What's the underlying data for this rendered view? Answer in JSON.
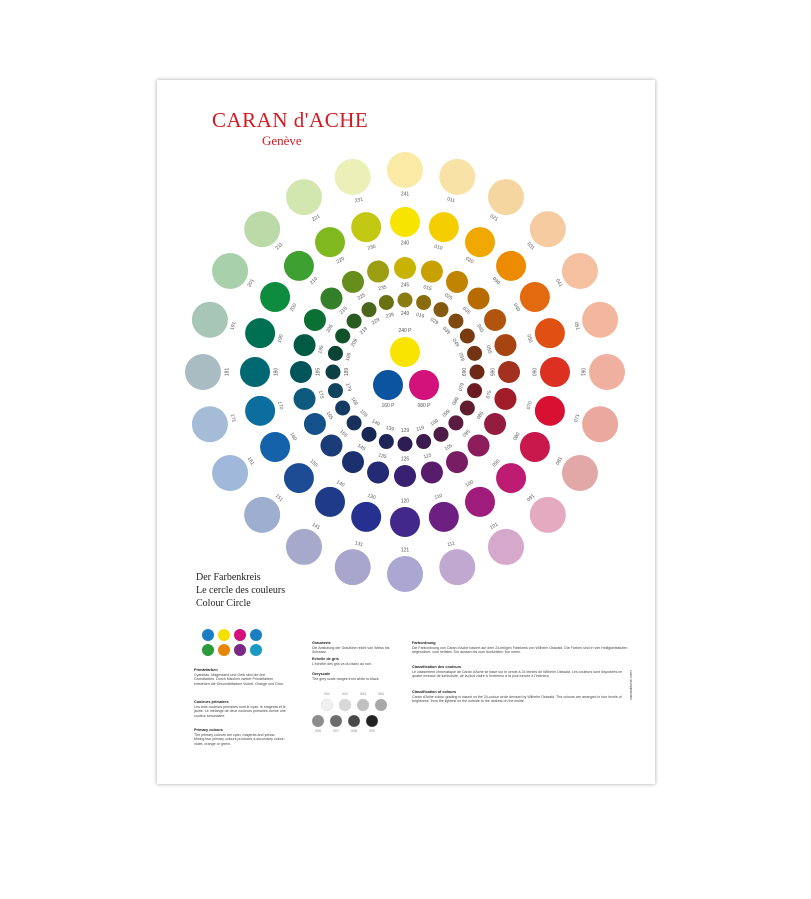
{
  "brand": {
    "name": "CARAN d'ACHE",
    "city": "Genève"
  },
  "wheel": {
    "rings": [
      {
        "labels": [
          "241",
          "011",
          "021",
          "031",
          "041",
          "051",
          "061",
          "071",
          "081",
          "091",
          "101",
          "111",
          "121",
          "131",
          "141",
          "151",
          "161",
          "171",
          "181",
          "191",
          "201",
          "211",
          "221",
          "231"
        ],
        "colors": [
          "#fbe9a6",
          "#f8e2a6",
          "#f6d6a0",
          "#f6cba0",
          "#f4c0a0",
          "#f2b79c",
          "#f0b0a0",
          "#eba89e",
          "#e2a8a8",
          "#e4aac0",
          "#d6a8cc",
          "#c0a8d0",
          "#aca6d2",
          "#a8a6cc",
          "#a6a8cc",
          "#9eaed0",
          "#a0b8da",
          "#a6bcd6",
          "#a8bcc2",
          "#a8c6b6",
          "#a8d0aa",
          "#bcdaa8",
          "#d2e6b0",
          "#eaf0b8"
        ]
      },
      {
        "labels": [
          "240",
          "010",
          "020",
          "030",
          "040",
          "050",
          "060",
          "070",
          "080",
          "090",
          "100",
          "110",
          "120",
          "130",
          "140",
          "150",
          "160",
          "170",
          "180",
          "190",
          "200",
          "210",
          "220",
          "230"
        ],
        "colors": [
          "#f7e400",
          "#f5ce00",
          "#f0a800",
          "#ec8a00",
          "#e46a10",
          "#e05012",
          "#dc3020",
          "#d81032",
          "#c8184c",
          "#be1c72",
          "#a01c7a",
          "#6e2082",
          "#42288a",
          "#263090",
          "#1e3a88",
          "#1e4c94",
          "#1662aa",
          "#0c6e9e",
          "#006870",
          "#007052",
          "#0e8c3e",
          "#3ea030",
          "#80b820",
          "#c2c812"
        ]
      },
      {
        "labels": [
          "245",
          "015",
          "025",
          "035",
          "045",
          "055",
          "065",
          "075",
          "085",
          "095",
          "105",
          "115",
          "125",
          "135",
          "145",
          "155",
          "165",
          "175",
          "185",
          "195",
          "205",
          "215",
          "225",
          "235"
        ],
        "colors": [
          "#c8b400",
          "#c8a000",
          "#c08400",
          "#b86c00",
          "#b05410",
          "#a84410",
          "#a43020",
          "#a01c28",
          "#941c40",
          "#8c1c5c",
          "#781c64",
          "#581c6c",
          "#3a2070",
          "#242a74",
          "#1c3070",
          "#1a3c78",
          "#14508a",
          "#0e5a7e",
          "#00545a",
          "#005a44",
          "#0a7034",
          "#34802a",
          "#668e1a",
          "#9a9e10"
        ]
      },
      {
        "labels": [
          "249",
          "019",
          "029",
          "039",
          "049",
          "059",
          "069",
          "079",
          "089",
          "099",
          "109",
          "119",
          "129",
          "139",
          "149",
          "159",
          "169",
          "179",
          "189",
          "199",
          "209",
          "219",
          "229",
          "239"
        ],
        "colors": [
          "#8a7c10",
          "#8a6c10",
          "#845a10",
          "#7e4a10",
          "#783c10",
          "#723414",
          "#6e2818",
          "#6a1c20",
          "#621c30",
          "#5c1c42",
          "#4e1c48",
          "#3c1c4e",
          "#2c1e52",
          "#1e2456",
          "#182854",
          "#18305a",
          "#143c62",
          "#10445c",
          "#0c4044",
          "#0c4434",
          "#10522a",
          "#2a5c22",
          "#4a661a",
          "#6a7014"
        ]
      }
    ],
    "center": {
      "labels": [
        "240 P",
        "160 P",
        "080 P"
      ],
      "colors": [
        "#f9e400",
        "#0d54a0",
        "#d2117a"
      ]
    }
  },
  "titles": [
    "Der Farbenkreis",
    "Le cercle des couleurs",
    "Colour Circle"
  ],
  "swatches": {
    "primary": [
      "#1a7ec2",
      "#f5e000",
      "#d2117a",
      "#1a7ec2"
    ],
    "secondary": [
      "#2a9a3a",
      "#e8860c",
      "#7a2a86",
      "#1a9ac2"
    ]
  },
  "sections": [
    {
      "heading": "Primärfarben",
      "text": "Cyanblau, Magentarot und Gelb sind die drei Grundfarben. Durch Mischen zweier Primärfarben entstehen die Sekundärfarben Violett, Orange und Grün."
    },
    {
      "heading": "Couleurs primaires",
      "text": "Les trois couleurs primaires sont le cyan, le magenta et le jaune. Le mélange de deux couleurs primaires donne une couleur secondaire."
    },
    {
      "heading": "Primary colours",
      "text": "The primary colours are cyan, magenta and yellow. Mixing two primary colours produces a secondary colour: violet, orange or green."
    },
    {
      "heading": "Grauwerte",
      "text": "Die Abstufung der Grautöne reicht von Weiss bis Schwarz."
    },
    {
      "heading": "Echelle de gris",
      "text": "L'échelle des gris va du blanc au noir."
    },
    {
      "heading": "Greyscale",
      "text": "The grey scale ranges from white to black."
    },
    {
      "heading": "Farbordnung",
      "text": "Die Farbordnung von Caran d'Ache basiert auf dem 24-teiligen Farbkreis von Wilhelm Ostwald. Die Farben sind in vier Helligkeitsstufen angeordnet, vom hellsten Ton aussen bis zum dunkelsten Ton innen."
    },
    {
      "heading": "Classification des couleurs",
      "text": "Le classement chromatique de Caran d'Ache se base sur le cercle à 24 teintes de Wilhelm Ostwald. Les couleurs sont disposées en quatre niveaux de luminosité, de la plus claire à l'extérieur à la plus foncée à l'intérieur."
    },
    {
      "heading": "Classification of colours",
      "text": "Caran d'Ache colour grading is based on the 24-colour circle devised by Wilhelm Ostwald. The colours are arranged in four levels of brightness, from the lightest on the outside to the darkest on the inside."
    }
  ],
  "greys": {
    "labels": [
      "001",
      "002",
      "003",
      "004",
      "005",
      "007",
      "008",
      "009"
    ],
    "colors": [
      "#f0f0f0",
      "#d8d8d8",
      "#c0c0c0",
      "#a8a8a8",
      "#8c8c8c",
      "#6c6c6c",
      "#4a4a4a",
      "#222222"
    ]
  },
  "website": "carandache.com"
}
